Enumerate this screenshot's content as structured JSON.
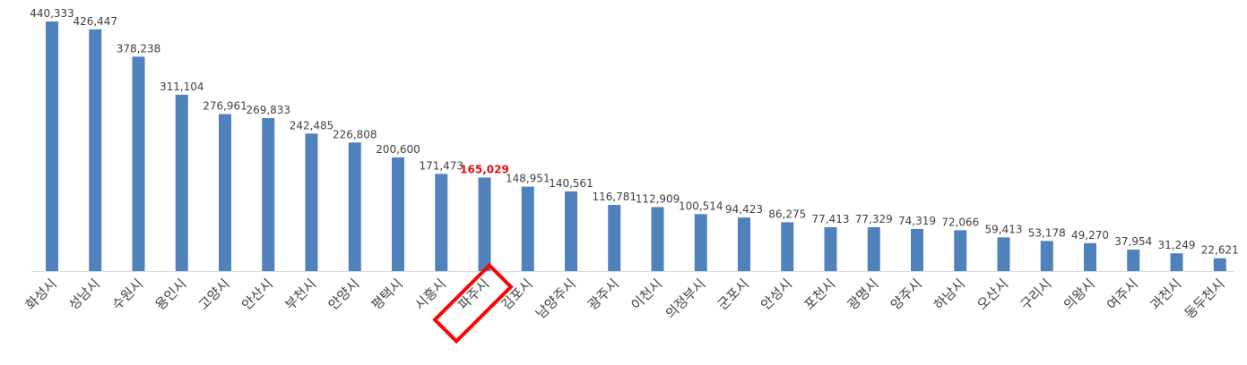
{
  "chart_data": {
    "type": "bar",
    "categories": [
      "화성시",
      "성남시",
      "수원시",
      "용인시",
      "고양시",
      "안산시",
      "부천시",
      "안양시",
      "평택시",
      "시흥시",
      "파주시",
      "김포시",
      "남양주시",
      "광주시",
      "이천시",
      "의정부시",
      "군포시",
      "안성시",
      "포천시",
      "광명시",
      "양주시",
      "하남시",
      "오산시",
      "구리시",
      "의왕시",
      "여주시",
      "과천시",
      "동두천시"
    ],
    "values": [
      440333,
      426447,
      378238,
      311104,
      276961,
      269833,
      242485,
      226808,
      200600,
      171473,
      165029,
      148951,
      140561,
      116781,
      112909,
      100514,
      94423,
      86275,
      77413,
      77329,
      74319,
      72066,
      59413,
      53178,
      49270,
      37954,
      31249,
      22621
    ],
    "value_labels": [
      "440,333",
      "426,447",
      "378,238",
      "311,104",
      "276,961",
      "269,833",
      "242,485",
      "226,808",
      "200,600",
      "171,473",
      "165,029",
      "148,951",
      "140,561",
      "116,781",
      "112,909",
      "100,514",
      "94,423",
      "86,275",
      "77,413",
      "77,329",
      "74,319",
      "72,066",
      "59,413",
      "53,178",
      "49,270",
      "37,954",
      "31,249",
      "22,621"
    ],
    "title": "",
    "xlabel": "",
    "ylabel": "",
    "ylim": [
      0,
      440333
    ],
    "grid": false,
    "legend": "none",
    "highlight_category": "파주시",
    "colors": {
      "bar": "#4f81bd",
      "axis": "#d9d9d9",
      "label": "#404040",
      "highlight": "#e01010"
    }
  }
}
